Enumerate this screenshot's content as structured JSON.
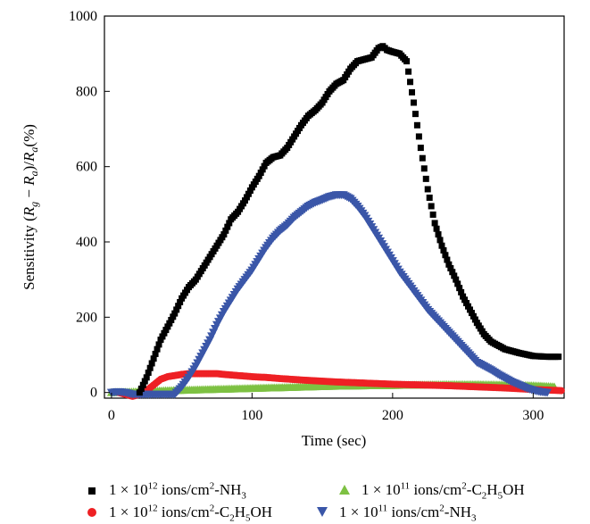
{
  "chart_data": {
    "type": "scatter",
    "xlabel": "Time (sec)",
    "ylabel_parts": {
      "prefix": "Sensitivity (",
      "r1": "R",
      "r1_sub": "g",
      "minus": " − ",
      "r2": "R",
      "r2_sub": "a",
      "mid": ")/",
      "r3": "R",
      "r3_sub": "a",
      "suffix": "(%)"
    },
    "xlim": [
      -5,
      322
    ],
    "ylim": [
      -15,
      1000
    ],
    "xticks": [
      0,
      100,
      200,
      300
    ],
    "yticks": [
      0,
      200,
      400,
      600,
      800,
      1000
    ],
    "grid": false,
    "legend_position": "bottom",
    "series": [
      {
        "name": "1 × 10^12 ions/cm^2-NH3",
        "color": "#000000",
        "marker": "square",
        "x": [
          20,
          25,
          30,
          35,
          40,
          45,
          50,
          55,
          60,
          65,
          70,
          75,
          80,
          85,
          90,
          95,
          100,
          105,
          110,
          115,
          120,
          125,
          130,
          135,
          140,
          145,
          150,
          155,
          160,
          165,
          170,
          175,
          180,
          185,
          190,
          193,
          196,
          200,
          205,
          210,
          215,
          220,
          225,
          230,
          235,
          240,
          245,
          250,
          255,
          260,
          265,
          270,
          280,
          290,
          300,
          310,
          318
        ],
        "y": [
          0,
          40,
          90,
          140,
          175,
          210,
          250,
          280,
          300,
          330,
          360,
          390,
          420,
          460,
          480,
          510,
          545,
          575,
          610,
          625,
          630,
          650,
          680,
          710,
          735,
          750,
          770,
          800,
          820,
          830,
          860,
          880,
          885,
          890,
          915,
          920,
          910,
          905,
          900,
          880,
          770,
          650,
          540,
          450,
          390,
          340,
          300,
          255,
          220,
          185,
          155,
          135,
          115,
          105,
          97,
          95,
          95
        ]
      },
      {
        "name": "1 × 10^12 ions/cm^2-C2H5OH",
        "color": "#ee2024",
        "marker": "circle",
        "x": [
          5,
          10,
          15,
          20,
          25,
          30,
          35,
          40,
          45,
          50,
          55,
          60,
          65,
          70,
          75,
          80,
          90,
          100,
          110,
          120,
          140,
          160,
          180,
          200,
          220,
          240,
          260,
          280,
          300,
          320
        ],
        "y": [
          0,
          -5,
          -10,
          -5,
          5,
          20,
          35,
          42,
          45,
          48,
          50,
          50,
          50,
          50,
          50,
          48,
          45,
          42,
          40,
          37,
          32,
          28,
          25,
          22,
          20,
          18,
          15,
          12,
          8,
          5
        ]
      },
      {
        "name": "1 × 10^11 ions/cm^2-C2H5OH",
        "color": "#7dc142",
        "marker": "triangle-up",
        "x": [
          0,
          20,
          40,
          60,
          80,
          100,
          120,
          140,
          160,
          180,
          200,
          220,
          240,
          260,
          280,
          300,
          315
        ],
        "y": [
          0,
          2,
          5,
          7,
          9,
          11,
          13,
          15,
          17,
          18,
          19,
          20,
          21,
          21,
          20,
          18,
          15
        ]
      },
      {
        "name": "1 × 10^11 ions/cm^2-NH3",
        "color": "#3a56a8",
        "marker": "triangle-down",
        "x": [
          0,
          5,
          10,
          15,
          45,
          50,
          55,
          60,
          65,
          70,
          75,
          80,
          85,
          90,
          95,
          100,
          105,
          110,
          115,
          120,
          125,
          130,
          135,
          140,
          145,
          150,
          155,
          160,
          165,
          170,
          175,
          180,
          185,
          190,
          195,
          200,
          205,
          210,
          215,
          220,
          225,
          230,
          235,
          240,
          245,
          250,
          255,
          260,
          265,
          270,
          275,
          280,
          285,
          290,
          295,
          300,
          305,
          310
        ],
        "y": [
          0,
          2,
          0,
          -5,
          -5,
          15,
          40,
          70,
          105,
          140,
          180,
          215,
          245,
          275,
          300,
          325,
          355,
          385,
          410,
          430,
          445,
          465,
          480,
          495,
          505,
          512,
          520,
          525,
          525,
          515,
          495,
          470,
          440,
          410,
          380,
          350,
          320,
          295,
          270,
          245,
          220,
          200,
          180,
          160,
          140,
          120,
          100,
          80,
          70,
          60,
          48,
          38,
          28,
          20,
          12,
          6,
          2,
          0
        ]
      }
    ]
  },
  "legend": {
    "items": [
      {
        "a": "1 × 10",
        "sup1": "12",
        "b": " ions/cm",
        "sup2": "2",
        "c": "-NH",
        "sub1": "3",
        "d": "",
        "sub2": "",
        "e": ""
      },
      {
        "a": "1 × 10",
        "sup1": "11",
        "b": " ions/cm",
        "sup2": "2",
        "c": "-C",
        "sub1": "2",
        "d": "H",
        "sub2": "5",
        "e": "OH"
      },
      {
        "a": "1 × 10",
        "sup1": "12",
        "b": " ions/cm",
        "sup2": "2",
        "c": "-C",
        "sub1": "2",
        "d": "H",
        "sub2": "5",
        "e": "OH"
      },
      {
        "a": "1 × 10",
        "sup1": "11",
        "b": " ions/cm",
        "sup2": "2",
        "c": "-NH",
        "sub1": "3",
        "d": "",
        "sub2": "",
        "e": ""
      }
    ]
  }
}
